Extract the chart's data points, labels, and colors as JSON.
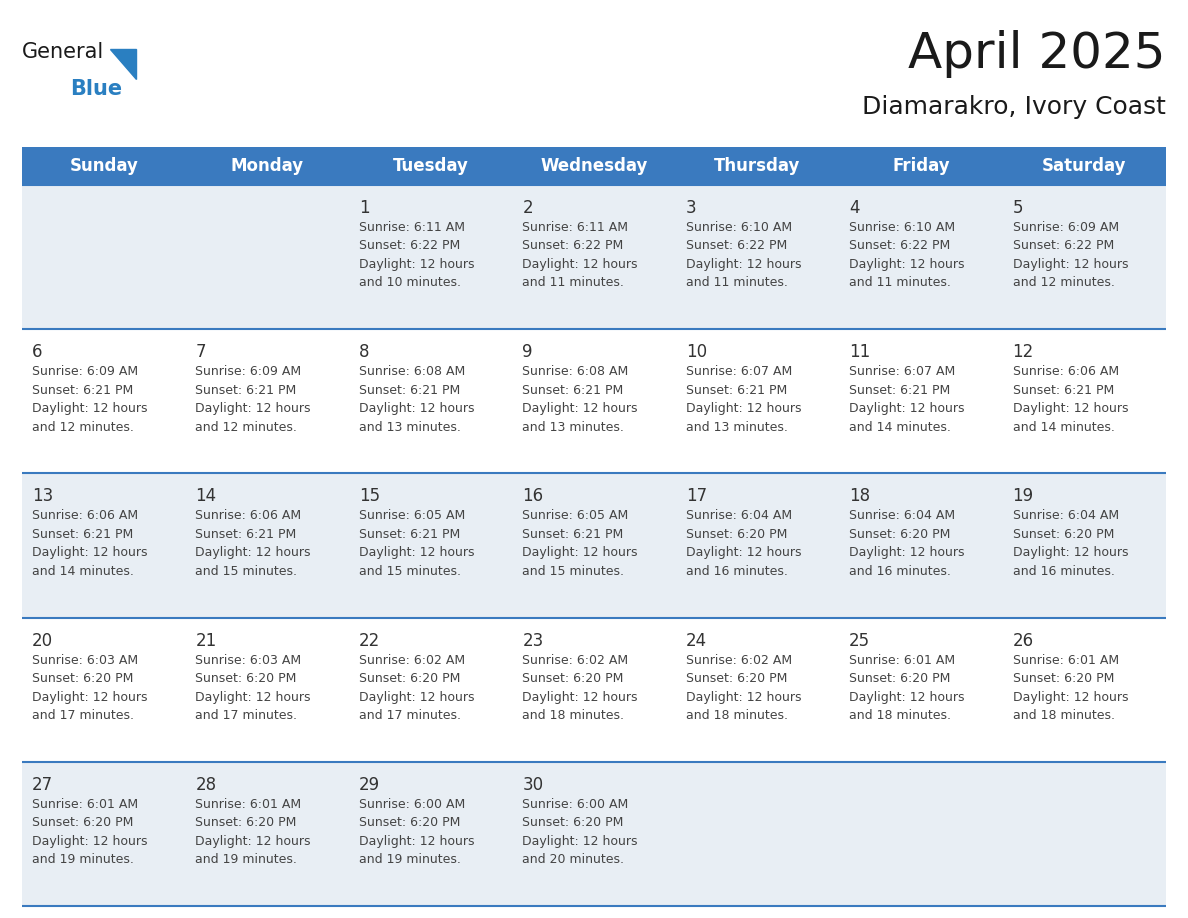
{
  "title": "April 2025",
  "subtitle": "Diamarakro, Ivory Coast",
  "header_color": "#3a7abf",
  "header_text_color": "#ffffff",
  "odd_row_color": "#e8eef4",
  "even_row_color": "#ffffff",
  "border_color": "#3a7abf",
  "text_color": "#444444",
  "day_num_color": "#333333",
  "days_of_week": [
    "Sunday",
    "Monday",
    "Tuesday",
    "Wednesday",
    "Thursday",
    "Friday",
    "Saturday"
  ],
  "calendar_data": [
    [
      {
        "day": "",
        "info": ""
      },
      {
        "day": "",
        "info": ""
      },
      {
        "day": "1",
        "info": "Sunrise: 6:11 AM\nSunset: 6:22 PM\nDaylight: 12 hours\nand 10 minutes."
      },
      {
        "day": "2",
        "info": "Sunrise: 6:11 AM\nSunset: 6:22 PM\nDaylight: 12 hours\nand 11 minutes."
      },
      {
        "day": "3",
        "info": "Sunrise: 6:10 AM\nSunset: 6:22 PM\nDaylight: 12 hours\nand 11 minutes."
      },
      {
        "day": "4",
        "info": "Sunrise: 6:10 AM\nSunset: 6:22 PM\nDaylight: 12 hours\nand 11 minutes."
      },
      {
        "day": "5",
        "info": "Sunrise: 6:09 AM\nSunset: 6:22 PM\nDaylight: 12 hours\nand 12 minutes."
      }
    ],
    [
      {
        "day": "6",
        "info": "Sunrise: 6:09 AM\nSunset: 6:21 PM\nDaylight: 12 hours\nand 12 minutes."
      },
      {
        "day": "7",
        "info": "Sunrise: 6:09 AM\nSunset: 6:21 PM\nDaylight: 12 hours\nand 12 minutes."
      },
      {
        "day": "8",
        "info": "Sunrise: 6:08 AM\nSunset: 6:21 PM\nDaylight: 12 hours\nand 13 minutes."
      },
      {
        "day": "9",
        "info": "Sunrise: 6:08 AM\nSunset: 6:21 PM\nDaylight: 12 hours\nand 13 minutes."
      },
      {
        "day": "10",
        "info": "Sunrise: 6:07 AM\nSunset: 6:21 PM\nDaylight: 12 hours\nand 13 minutes."
      },
      {
        "day": "11",
        "info": "Sunrise: 6:07 AM\nSunset: 6:21 PM\nDaylight: 12 hours\nand 14 minutes."
      },
      {
        "day": "12",
        "info": "Sunrise: 6:06 AM\nSunset: 6:21 PM\nDaylight: 12 hours\nand 14 minutes."
      }
    ],
    [
      {
        "day": "13",
        "info": "Sunrise: 6:06 AM\nSunset: 6:21 PM\nDaylight: 12 hours\nand 14 minutes."
      },
      {
        "day": "14",
        "info": "Sunrise: 6:06 AM\nSunset: 6:21 PM\nDaylight: 12 hours\nand 15 minutes."
      },
      {
        "day": "15",
        "info": "Sunrise: 6:05 AM\nSunset: 6:21 PM\nDaylight: 12 hours\nand 15 minutes."
      },
      {
        "day": "16",
        "info": "Sunrise: 6:05 AM\nSunset: 6:21 PM\nDaylight: 12 hours\nand 15 minutes."
      },
      {
        "day": "17",
        "info": "Sunrise: 6:04 AM\nSunset: 6:20 PM\nDaylight: 12 hours\nand 16 minutes."
      },
      {
        "day": "18",
        "info": "Sunrise: 6:04 AM\nSunset: 6:20 PM\nDaylight: 12 hours\nand 16 minutes."
      },
      {
        "day": "19",
        "info": "Sunrise: 6:04 AM\nSunset: 6:20 PM\nDaylight: 12 hours\nand 16 minutes."
      }
    ],
    [
      {
        "day": "20",
        "info": "Sunrise: 6:03 AM\nSunset: 6:20 PM\nDaylight: 12 hours\nand 17 minutes."
      },
      {
        "day": "21",
        "info": "Sunrise: 6:03 AM\nSunset: 6:20 PM\nDaylight: 12 hours\nand 17 minutes."
      },
      {
        "day": "22",
        "info": "Sunrise: 6:02 AM\nSunset: 6:20 PM\nDaylight: 12 hours\nand 17 minutes."
      },
      {
        "day": "23",
        "info": "Sunrise: 6:02 AM\nSunset: 6:20 PM\nDaylight: 12 hours\nand 18 minutes."
      },
      {
        "day": "24",
        "info": "Sunrise: 6:02 AM\nSunset: 6:20 PM\nDaylight: 12 hours\nand 18 minutes."
      },
      {
        "day": "25",
        "info": "Sunrise: 6:01 AM\nSunset: 6:20 PM\nDaylight: 12 hours\nand 18 minutes."
      },
      {
        "day": "26",
        "info": "Sunrise: 6:01 AM\nSunset: 6:20 PM\nDaylight: 12 hours\nand 18 minutes."
      }
    ],
    [
      {
        "day": "27",
        "info": "Sunrise: 6:01 AM\nSunset: 6:20 PM\nDaylight: 12 hours\nand 19 minutes."
      },
      {
        "day": "28",
        "info": "Sunrise: 6:01 AM\nSunset: 6:20 PM\nDaylight: 12 hours\nand 19 minutes."
      },
      {
        "day": "29",
        "info": "Sunrise: 6:00 AM\nSunset: 6:20 PM\nDaylight: 12 hours\nand 19 minutes."
      },
      {
        "day": "30",
        "info": "Sunrise: 6:00 AM\nSunset: 6:20 PM\nDaylight: 12 hours\nand 20 minutes."
      },
      {
        "day": "",
        "info": ""
      },
      {
        "day": "",
        "info": ""
      },
      {
        "day": "",
        "info": ""
      }
    ]
  ],
  "logo_text_general": "General",
  "logo_text_blue": "Blue",
  "logo_color_general": "#1a1a1a",
  "logo_color_blue": "#2a7fc1",
  "logo_triangle_color": "#2a7fc1",
  "title_fontsize": 36,
  "subtitle_fontsize": 18,
  "header_fontsize": 12,
  "day_num_fontsize": 12,
  "info_fontsize": 9
}
